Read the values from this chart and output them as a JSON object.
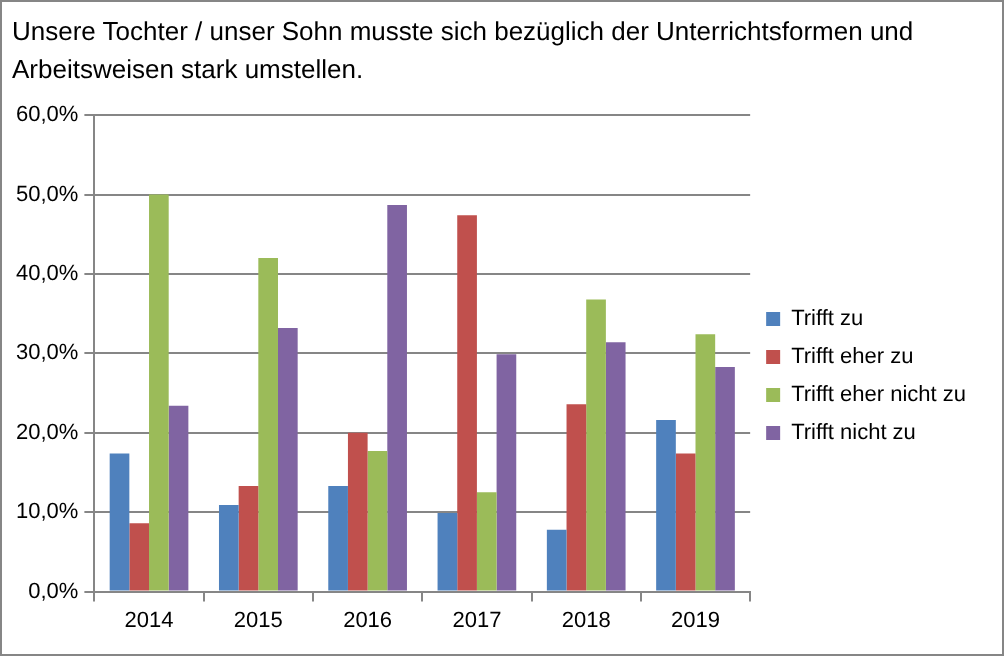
{
  "chart_data": {
    "type": "bar",
    "title": "Unsere Tochter / unser Sohn musste sich bezüglich der Unterrichtsformen und Arbeitsweisen stark umstellen.",
    "categories": [
      "2014",
      "2015",
      "2016",
      "2017",
      "2018",
      "2019"
    ],
    "series": [
      {
        "name": "Trifft zu",
        "color": "#4f81bd",
        "values": [
          17.4,
          10.9,
          13.3,
          9.9,
          7.8,
          21.6
        ]
      },
      {
        "name": "Trifft eher zu",
        "color": "#c0504d",
        "values": [
          8.6,
          13.3,
          20.0,
          47.4,
          23.6,
          17.4
        ]
      },
      {
        "name": "Trifft eher nicht zu",
        "color": "#9bbb59",
        "values": [
          50.0,
          42.0,
          17.7,
          12.5,
          36.8,
          32.4
        ]
      },
      {
        "name": "Trifft nicht zu",
        "color": "#8064a2",
        "values": [
          23.4,
          33.2,
          48.7,
          29.9,
          31.4,
          28.3
        ]
      }
    ],
    "ylim": [
      0,
      60
    ],
    "yticks": [
      {
        "value": 0,
        "label": "0,0%"
      },
      {
        "value": 10,
        "label": "10,0%"
      },
      {
        "value": 20,
        "label": "20,0%"
      },
      {
        "value": 30,
        "label": "30,0%"
      },
      {
        "value": 40,
        "label": "40,0%"
      },
      {
        "value": 50,
        "label": "50,0%"
      },
      {
        "value": 60,
        "label": "60,0%"
      }
    ],
    "grid": "y",
    "legend": "right"
  }
}
